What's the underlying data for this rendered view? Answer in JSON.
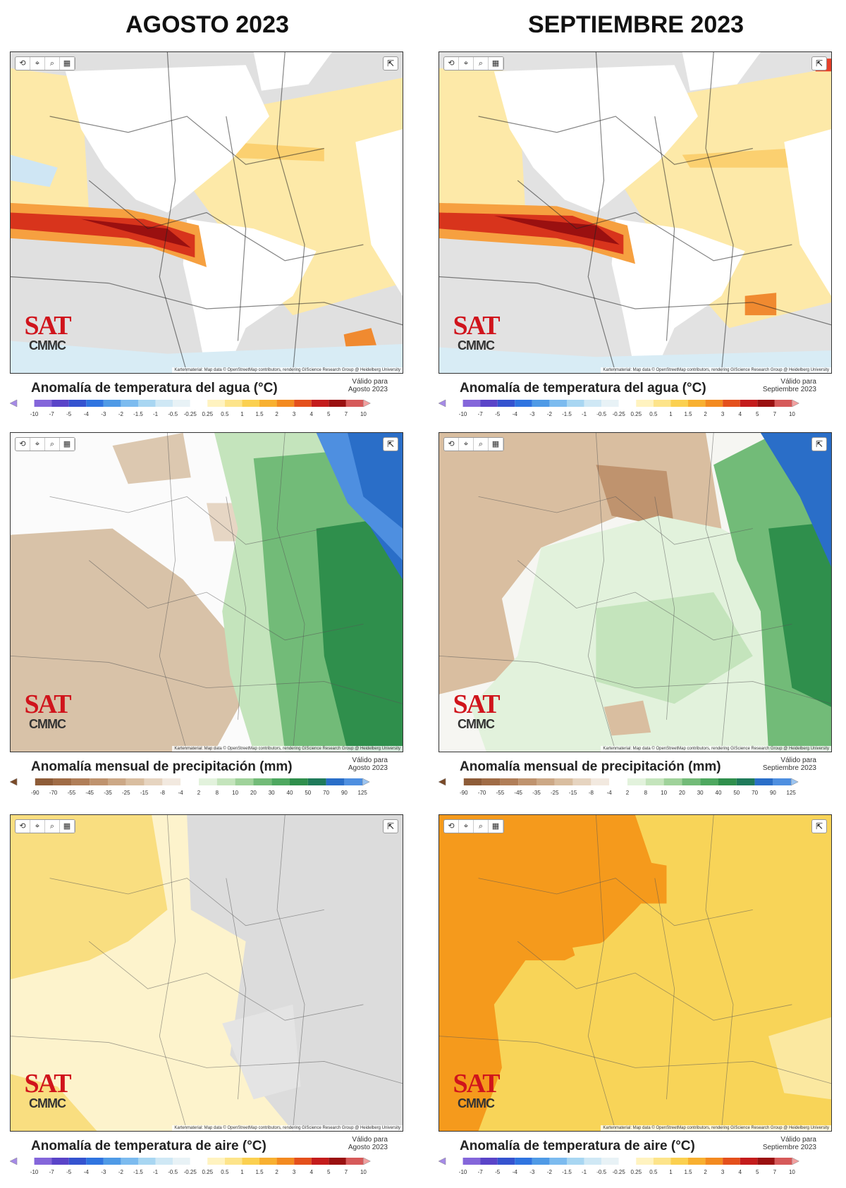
{
  "columns": [
    {
      "title": "AGOSTO 2023",
      "valid_label": "Válido para",
      "valid_period": "Agosto 2023"
    },
    {
      "title": "SEPTIEMBRE 2023",
      "valid_label": "Válido para",
      "valid_period": "Septiembre 2023"
    }
  ],
  "panels": [
    {
      "caption": "Anomalía de temperatura del agua (°C)",
      "scale": [
        "-10",
        "-7",
        "-5",
        "-4",
        "-3",
        "-2",
        "-1.5",
        "-1",
        "-0.5",
        "-0.25",
        "0.25",
        "0.5",
        "1",
        "1.5",
        "2",
        "3",
        "4",
        "5",
        "7",
        "10"
      ]
    },
    {
      "caption": "Anomalía mensual de precipitación (mm)",
      "scale": [
        "-90",
        "-70",
        "-55",
        "-45",
        "-35",
        "-25",
        "-15",
        "-8",
        "-4",
        "2",
        "8",
        "10",
        "20",
        "30",
        "40",
        "50",
        "70",
        "90",
        "125"
      ]
    },
    {
      "caption": "Anomalía de temperatura de aire (°C)",
      "scale": [
        "-10",
        "-7",
        "-5",
        "-4",
        "-3",
        "-2",
        "-1.5",
        "-1",
        "-0.5",
        "-0.25",
        "0.25",
        "0.5",
        "1",
        "1.5",
        "2",
        "3",
        "4",
        "5",
        "7",
        "10"
      ]
    }
  ],
  "logo": {
    "mark": "SAT",
    "org": "CMMC"
  },
  "attribution": "Kartenmaterial: Map data © OpenStreetMap contributors, rendering GIScience Research Group @ Heidelberg University"
}
